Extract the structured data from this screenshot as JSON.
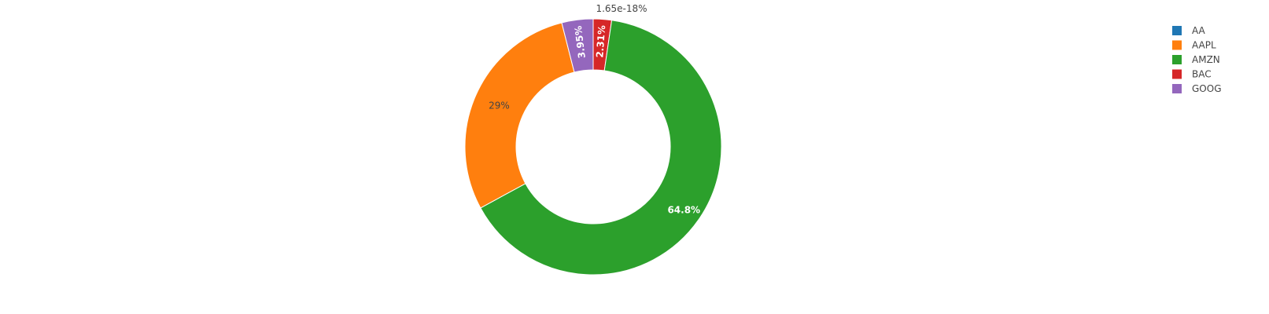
{
  "chart_data": {
    "type": "pie",
    "hole": true,
    "legend_position": "top-right",
    "slices": [
      {
        "name": "AA",
        "percent": 1.65e-18,
        "label": "1.65e-18%",
        "color": "#1f77b4",
        "label_position": "outside"
      },
      {
        "name": "BAC",
        "percent": 2.31,
        "label": "2.31%",
        "color": "#d62728",
        "label_position": "inside-radial"
      },
      {
        "name": "AMZN",
        "percent": 64.8,
        "label": "64.8%",
        "color": "#2ca02c",
        "label_position": "inside"
      },
      {
        "name": "AAPL",
        "percent": 29,
        "label": "29%",
        "color": "#ff7f0e",
        "label_position": "inside"
      },
      {
        "name": "GOOG",
        "percent": 3.95,
        "label": "3.95%",
        "color": "#9467bd",
        "label_position": "inside-radial"
      }
    ],
    "legend": [
      {
        "name": "AA",
        "color": "#1f77b4"
      },
      {
        "name": "AAPL",
        "color": "#ff7f0e"
      },
      {
        "name": "AMZN",
        "color": "#2ca02c"
      },
      {
        "name": "BAC",
        "color": "#d62728"
      },
      {
        "name": "GOOG",
        "color": "#9467bd"
      }
    ]
  }
}
